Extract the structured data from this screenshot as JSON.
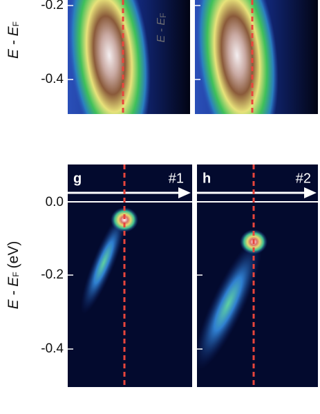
{
  "top": {
    "y_label": {
      "text": "E - E",
      "sub": "F"
    },
    "inset_label": {
      "text": "E - E",
      "sub": "F"
    },
    "ticks": [
      "-0.2",
      "-0.4"
    ]
  },
  "bottom": {
    "panels": [
      {
        "letter": "g",
        "tag": "#1"
      },
      {
        "letter": "h",
        "tag": "#2"
      }
    ],
    "y_label": {
      "text": "E - E",
      "sub": "F",
      "unit": "(eV)"
    },
    "ticks": [
      "0.0",
      "-0.2",
      "-0.4"
    ]
  }
}
